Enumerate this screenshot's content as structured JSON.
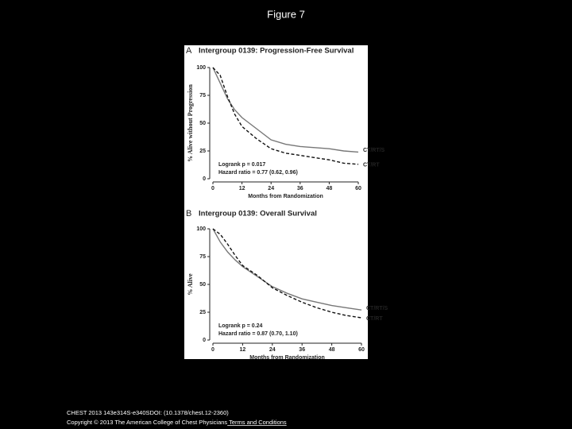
{
  "page": {
    "title": "Figure 7",
    "footer": {
      "citation": "CHEST 2013 143e314S-e340SDOI: (10.1378/chest.12-2360)",
      "copyright": "Copyright © 2013 The American College of Chest Physicians",
      "link": " Terms and Conditions"
    }
  },
  "chart_data": [
    {
      "type": "line",
      "panel": "A",
      "title": "Intergroup 0139: Progression-Free Survival",
      "y_label": "% Alive without Progression",
      "x_label": "Months from Randomization",
      "annotations": [
        "Logrank p = 0.017",
        "Hazard ratio = 0.77 (0.62, 0.96)"
      ],
      "x": [
        0,
        3,
        6,
        9,
        12,
        18,
        24,
        30,
        36,
        42,
        48,
        54,
        60
      ],
      "series": [
        {
          "name": "CT/RT/S",
          "color": "#777777",
          "dashed": false,
          "values": [
            100,
            86,
            72,
            62,
            55,
            45,
            35,
            31,
            29,
            28,
            27,
            25,
            24
          ]
        },
        {
          "name": "CT/RT",
          "color": "#111111",
          "dashed": true,
          "values": [
            100,
            93,
            74,
            58,
            47,
            36,
            27,
            23,
            21,
            19,
            17,
            14,
            13
          ]
        }
      ],
      "xlim": [
        0,
        60
      ],
      "xticks": [
        0,
        12,
        24,
        36,
        48,
        60
      ],
      "ylim": [
        0,
        100
      ],
      "yticks": [
        0,
        25,
        50,
        75,
        100
      ]
    },
    {
      "type": "line",
      "panel": "B",
      "title": "Intergroup 0139: Overall Survival",
      "y_label": "% Alive",
      "x_label": "Months from Randomization",
      "annotations": [
        "Logrank p = 0.24",
        "Hazard ratio = 0.87 (0.70, 1.10)"
      ],
      "x": [
        0,
        3,
        6,
        9,
        12,
        18,
        24,
        30,
        36,
        42,
        48,
        54,
        60
      ],
      "series": [
        {
          "name": "CT/RT/S",
          "color": "#777777",
          "dashed": false,
          "values": [
            100,
            88,
            79,
            72,
            66,
            57,
            48,
            42,
            37,
            34,
            31,
            29,
            27
          ]
        },
        {
          "name": "CT/RT",
          "color": "#111111",
          "dashed": true,
          "values": [
            100,
            95,
            86,
            76,
            67,
            58,
            47,
            40,
            34,
            29,
            25,
            22,
            20
          ]
        }
      ],
      "xlim": [
        0,
        60
      ],
      "xticks": [
        0,
        12,
        24,
        36,
        48,
        60
      ],
      "ylim": [
        0,
        100
      ],
      "yticks": [
        0,
        25,
        50,
        75,
        100
      ]
    }
  ]
}
